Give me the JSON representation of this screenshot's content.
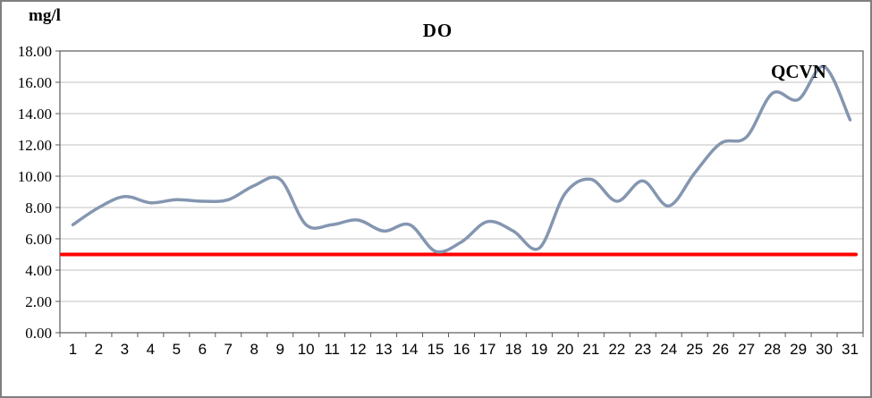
{
  "chart_data": {
    "type": "line",
    "title": "DO",
    "unit_label": "mg/l",
    "annotation": "QCVN",
    "xlabel": "",
    "ylabel": "mg/l",
    "ylim": [
      0,
      18
    ],
    "grid": true,
    "legend": "none",
    "x_labels": [
      "1",
      "2",
      "3",
      "4",
      "5",
      "6",
      "7",
      "8",
      "9",
      "10",
      "11",
      "12",
      "13",
      "14",
      "15",
      "16",
      "17",
      "18",
      "19",
      "20",
      "21",
      "22",
      "23",
      "24",
      "25",
      "26",
      "27",
      "28",
      "29",
      "30",
      "31"
    ],
    "y_ticks": [
      {
        "value": 0,
        "label": "0.00"
      },
      {
        "value": 2,
        "label": "2.00"
      },
      {
        "value": 4,
        "label": "4.00"
      },
      {
        "value": 6,
        "label": "6.00"
      },
      {
        "value": 8,
        "label": "8.00"
      },
      {
        "value": 10,
        "label": "10.00"
      },
      {
        "value": 12,
        "label": "12.00"
      },
      {
        "value": 14,
        "label": "14.00"
      },
      {
        "value": 16,
        "label": "16.00"
      },
      {
        "value": 18,
        "label": "18.00"
      }
    ],
    "series": [
      {
        "name": "DO",
        "smooth": true,
        "color": "#8496B0",
        "values": [
          6.9,
          8.0,
          8.7,
          8.3,
          8.5,
          8.4,
          8.5,
          9.4,
          9.8,
          6.9,
          6.9,
          7.2,
          6.5,
          6.9,
          5.2,
          5.8,
          7.1,
          6.5,
          5.4,
          8.9,
          9.8,
          8.4,
          9.7,
          8.1,
          10.2,
          12.1,
          12.5,
          15.3,
          14.9,
          17.0,
          13.6
        ]
      }
    ],
    "reference_line": {
      "name": "QCVN",
      "value": 5,
      "color": "#FF0000"
    },
    "colors": {
      "gridline": "#C0C0C0",
      "axis": "#595959",
      "background": "#FFFFFF"
    }
  }
}
